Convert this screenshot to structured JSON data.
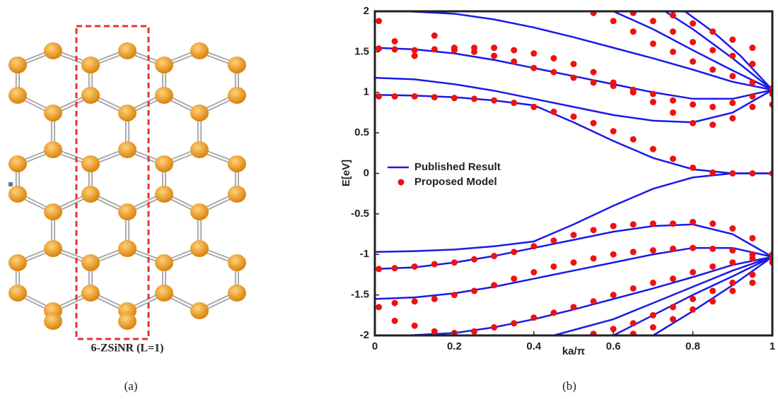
{
  "figure_a": {
    "label": "6-ZSiNR (L=1)",
    "caption": "(a)"
  },
  "caption_b": "(b)",
  "chart_data": {
    "type": "line",
    "xlabel": "ka/π",
    "ylabel": "E[eV]",
    "xlim": [
      0,
      1
    ],
    "ylim": [
      -2,
      2
    ],
    "xticks": [
      0,
      0.2,
      0.4,
      0.6,
      0.8,
      1
    ],
    "yticks": [
      -2,
      -1.5,
      -1,
      -0.5,
      0,
      0.5,
      1,
      1.5,
      2
    ],
    "legend": "center-left",
    "series": [
      {
        "name": "Published Result",
        "color": "#1a1ae6",
        "type": "line",
        "lines": [
          {
            "x": [
              0,
              0.1,
              0.2,
              0.3,
              0.4,
              0.5,
              0.6,
              0.7,
              0.8,
              0.9,
              1
            ],
            "values": [
              0.97,
              0.96,
              0.94,
              0.9,
              0.84,
              0.63,
              0.4,
              0.19,
              0.05,
              0,
              0
            ]
          },
          {
            "x": [
              0,
              0.1,
              0.2,
              0.3,
              0.4,
              0.5,
              0.6,
              0.7,
              0.8,
              0.9,
              1
            ],
            "values": [
              1.18,
              1.16,
              1.1,
              1.02,
              0.92,
              0.82,
              0.72,
              0.65,
              0.63,
              0.75,
              1.03
            ]
          },
          {
            "x": [
              0,
              0.1,
              0.2,
              0.3,
              0.4,
              0.5,
              0.6,
              0.7,
              0.8,
              0.9,
              1
            ],
            "values": [
              1.55,
              1.53,
              1.48,
              1.4,
              1.3,
              1.2,
              1.1,
              1.0,
              0.92,
              0.92,
              1.03
            ]
          },
          {
            "x": [
              0.08,
              0.2,
              0.3,
              0.4,
              0.5,
              0.6,
              0.7,
              0.8,
              0.9,
              1
            ],
            "values": [
              2,
              1.97,
              1.9,
              1.8,
              1.68,
              1.55,
              1.42,
              1.28,
              1.13,
              1.03
            ]
          },
          {
            "x": [
              0.6,
              0.7,
              0.8,
              0.9,
              1
            ],
            "values": [
              2,
              1.78,
              1.52,
              1.27,
              1.03
            ]
          },
          {
            "x": [
              0.73,
              0.8,
              0.9,
              1
            ],
            "values": [
              2,
              1.78,
              1.42,
              1.03
            ]
          },
          {
            "x": [
              0.78,
              0.85,
              0.92,
              1
            ],
            "values": [
              2,
              1.75,
              1.45,
              1.03
            ]
          },
          {
            "x": [
              0,
              0.1,
              0.2,
              0.3,
              0.4,
              0.5,
              0.6,
              0.7,
              0.8,
              0.9,
              1
            ],
            "values": [
              -0.97,
              -0.96,
              -0.94,
              -0.9,
              -0.84,
              -0.63,
              -0.4,
              -0.19,
              -0.05,
              0,
              0
            ]
          },
          {
            "x": [
              0,
              0.1,
              0.2,
              0.3,
              0.4,
              0.5,
              0.6,
              0.7,
              0.8,
              0.9,
              1
            ],
            "values": [
              -1.18,
              -1.16,
              -1.1,
              -1.02,
              -0.92,
              -0.82,
              -0.72,
              -0.65,
              -0.63,
              -0.75,
              -1.03
            ]
          },
          {
            "x": [
              0,
              0.1,
              0.2,
              0.3,
              0.4,
              0.5,
              0.6,
              0.7,
              0.8,
              0.9,
              1
            ],
            "values": [
              -1.55,
              -1.53,
              -1.48,
              -1.4,
              -1.3,
              -1.2,
              -1.1,
              -1.0,
              -0.92,
              -0.92,
              -1.03
            ]
          },
          {
            "x": [
              0.08,
              0.2,
              0.3,
              0.4,
              0.5,
              0.6,
              0.7,
              0.8,
              0.9,
              1
            ],
            "values": [
              -2,
              -1.97,
              -1.9,
              -1.8,
              -1.68,
              -1.55,
              -1.42,
              -1.28,
              -1.13,
              -1.03
            ]
          },
          {
            "x": [
              0.45,
              0.6,
              0.7,
              0.8,
              0.9,
              1
            ],
            "values": [
              -2,
              -1.8,
              -1.6,
              -1.4,
              -1.2,
              -1.03
            ]
          },
          {
            "x": [
              0.6,
              0.7,
              0.8,
              0.9,
              1
            ],
            "values": [
              -2,
              -1.75,
              -1.5,
              -1.27,
              -1.03
            ]
          },
          {
            "x": [
              0.7,
              0.8,
              0.9,
              1
            ],
            "values": [
              -2,
              -1.7,
              -1.38,
              -1.03
            ]
          }
        ]
      },
      {
        "name": "Proposed Model",
        "color": "#ee1111",
        "type": "scatter",
        "x": [
          0.01,
          0.05,
          0.1,
          0.15,
          0.2,
          0.25,
          0.3,
          0.35,
          0.4,
          0.45,
          0.5,
          0.55,
          0.6,
          0.65,
          0.7,
          0.75,
          0.8,
          0.85,
          0.9,
          0.95,
          1,
          0.01,
          0.05,
          0.1,
          0.15,
          0.2,
          0.25,
          0.3,
          0.35,
          0.4,
          0.45,
          0.5,
          0.55,
          0.6,
          0.65,
          0.7,
          0.75,
          0.8,
          0.85,
          0.9,
          0.95,
          1,
          0.01,
          0.05,
          0.1,
          0.15,
          0.2,
          0.25,
          0.3,
          0.35,
          0.4,
          0.45,
          0.5,
          0.55,
          0.6,
          0.65,
          0.7,
          0.75,
          0.8,
          0.85,
          0.9,
          0.95,
          1,
          0.55,
          0.6,
          0.65,
          0.7,
          0.75,
          0.8,
          0.85,
          0.9,
          0.95,
          1,
          0.65,
          0.7,
          0.75,
          0.8,
          0.85,
          0.9,
          0.95,
          0.75,
          0.8,
          0.85,
          0.9,
          0.95,
          0.01,
          0.05,
          0.1,
          0.15,
          0.2,
          0.25,
          0.3,
          0.35,
          0.4,
          0.45,
          0.5,
          0.55,
          0.6,
          0.65,
          0.7,
          0.75,
          0.8,
          0.85,
          0.9,
          0.95,
          1,
          0.01,
          0.05,
          0.1,
          0.15,
          0.2,
          0.25,
          0.3,
          0.35,
          0.4,
          0.45,
          0.5,
          0.55,
          0.6,
          0.65,
          0.7,
          0.75,
          0.8,
          0.85,
          0.9,
          0.95,
          1,
          0.05,
          0.1,
          0.15,
          0.2,
          0.25,
          0.3,
          0.35,
          0.4,
          0.45,
          0.5,
          0.55,
          0.6,
          0.65,
          0.7,
          0.75,
          0.8,
          0.85,
          0.9,
          0.95,
          1,
          0.55,
          0.6,
          0.65,
          0.7,
          0.75,
          0.8,
          0.85,
          0.9,
          0.95,
          0.65,
          0.7,
          0.75,
          0.8,
          0.85,
          0.9,
          0.95
        ],
        "values": [
          0.95,
          0.95,
          0.95,
          0.94,
          0.93,
          0.92,
          0.9,
          0.87,
          0.82,
          0.76,
          0.7,
          0.62,
          0.52,
          0.42,
          0.3,
          0.18,
          0.07,
          0.01,
          0,
          0,
          0,
          1.54,
          1.53,
          1.52,
          1.53,
          1.55,
          1.55,
          1.55,
          1.52,
          1.48,
          1.42,
          1.35,
          1.25,
          1.12,
          1.0,
          0.88,
          0.75,
          0.62,
          0.6,
          0.68,
          0.82,
          0.98,
          1.88,
          1.63,
          1.45,
          1.7,
          1.52,
          1.5,
          1.45,
          1.38,
          1.3,
          1.25,
          1.18,
          1.12,
          1.08,
          1.03,
          0.98,
          0.9,
          0.85,
          0.82,
          0.87,
          0.95,
          0.85,
          1.98,
          1.88,
          1.75,
          1.6,
          1.5,
          1.38,
          1.28,
          1.2,
          1.12,
          1.05,
          1.98,
          1.88,
          1.75,
          1.62,
          1.52,
          1.45,
          1.35,
          1.95,
          1.85,
          1.75,
          1.65,
          1.55,
          -1.18,
          -1.17,
          -1.15,
          -1.12,
          -1.1,
          -1.06,
          -1.02,
          -0.97,
          -0.9,
          -0.83,
          -0.76,
          -0.7,
          -0.65,
          -0.63,
          -0.62,
          -0.62,
          -0.6,
          -0.62,
          -0.68,
          -0.8,
          -1.0,
          -1.65,
          -1.6,
          -1.58,
          -1.55,
          -1.5,
          -1.45,
          -1.38,
          -1.3,
          -1.22,
          -1.15,
          -1.1,
          -1.05,
          -1.0,
          -0.97,
          -0.95,
          -0.93,
          -0.92,
          -0.93,
          -0.95,
          -1.0,
          -1.05,
          -1.82,
          -1.88,
          -1.95,
          -1.97,
          -1.95,
          -1.9,
          -1.85,
          -1.78,
          -1.72,
          -1.65,
          -1.58,
          -1.5,
          -1.42,
          -1.35,
          -1.3,
          -1.22,
          -1.15,
          -1.1,
          -1.05,
          -1.1,
          -1.98,
          -1.92,
          -1.85,
          -1.75,
          -1.65,
          -1.55,
          -1.45,
          -1.35,
          -1.25,
          -1.98,
          -1.9,
          -1.8,
          -1.68,
          -1.58,
          -1.45,
          -1.35
        ]
      }
    ]
  }
}
